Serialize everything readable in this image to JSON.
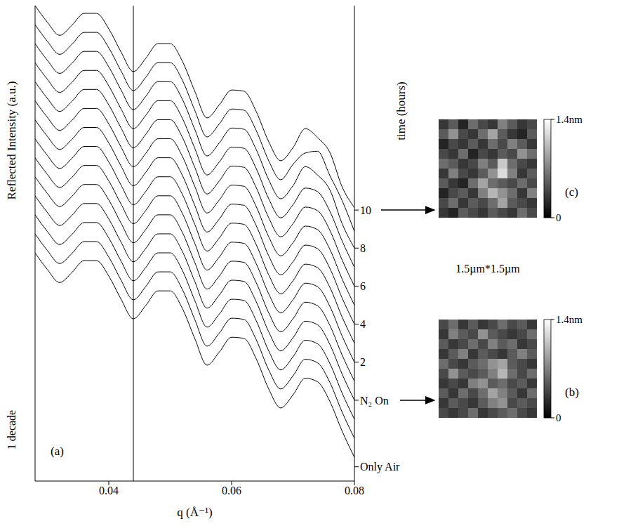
{
  "image_size_label": "1.5µm*1.5µm",
  "chart_data": [
    {
      "type": "line",
      "label": "(a)",
      "x_label": "q (Å⁻¹)",
      "y_label": "Reflected Intensity (a.u.)",
      "y2_label": "time (hours)",
      "annotations": [
        "1 decade"
      ],
      "color": "#000000",
      "x": [
        0.028,
        0.03,
        0.032,
        0.034,
        0.036,
        0.038,
        0.04,
        0.042,
        0.044,
        0.046,
        0.048,
        0.05,
        0.052,
        0.054,
        0.056,
        0.058,
        0.06,
        0.062,
        0.064,
        0.066,
        0.068,
        0.07,
        0.072,
        0.074,
        0.076,
        0.078,
        0.08
      ],
      "xlim": [
        0.028,
        0.08
      ],
      "xticks": [
        0.04,
        0.06,
        0.08
      ],
      "ylim": [
        0,
        8
      ],
      "yticks": [],
      "y2lim": [
        -4.25,
        20.75
      ],
      "y2ticks": [
        {
          "value": -3.5,
          "label": "Only Air"
        },
        {
          "value": 0,
          "label": "N₂ On"
        },
        2,
        4,
        6,
        8,
        10
      ],
      "reference_x": 0.044,
      "series": [
        {
          "values": [
            8.0,
            7.72,
            7.5,
            7.67,
            7.87,
            7.87,
            7.61,
            7.22,
            6.89,
            7.11,
            7.36,
            7.36,
            7.06,
            6.56,
            6.11,
            6.33,
            6.58,
            6.56,
            6.22,
            5.72,
            5.39,
            5.61,
            5.93,
            5.78,
            5.53,
            4.95,
            4.6
          ]
        },
        {
          "values": [
            7.68,
            7.4,
            7.18,
            7.35,
            7.55,
            7.55,
            7.29,
            6.9,
            6.57,
            6.79,
            7.04,
            7.04,
            6.74,
            6.24,
            5.79,
            6.01,
            6.26,
            6.24,
            5.9,
            5.4,
            5.07,
            5.33,
            5.52,
            5.55,
            5.14,
            4.72,
            4.2
          ]
        },
        {
          "values": [
            7.36,
            7.08,
            6.86,
            7.03,
            7.23,
            7.23,
            6.97,
            6.58,
            6.25,
            6.47,
            6.72,
            6.72,
            6.42,
            5.92,
            5.47,
            5.69,
            5.94,
            5.92,
            5.58,
            5.08,
            4.75,
            4.97,
            5.29,
            5.15,
            4.9,
            4.33,
            3.92
          ]
        },
        {
          "values": [
            7.04,
            6.76,
            6.54,
            6.71,
            6.91,
            6.91,
            6.65,
            6.26,
            5.93,
            6.15,
            6.4,
            6.4,
            6.1,
            5.6,
            5.15,
            5.37,
            5.62,
            5.6,
            5.26,
            4.76,
            4.43,
            4.65,
            4.93,
            4.87,
            4.54,
            4.04,
            3.6
          ]
        },
        {
          "values": [
            6.72,
            6.44,
            6.22,
            6.39,
            6.59,
            6.59,
            6.33,
            5.94,
            5.61,
            5.83,
            6.08,
            6.08,
            5.78,
            5.28,
            4.83,
            5.05,
            5.3,
            5.28,
            4.94,
            4.44,
            4.11,
            4.33,
            4.61,
            4.55,
            4.22,
            3.72,
            3.28
          ]
        },
        {
          "values": [
            6.4,
            6.12,
            5.9,
            6.07,
            6.27,
            6.27,
            6.01,
            5.62,
            5.29,
            5.51,
            5.76,
            5.76,
            5.46,
            4.96,
            4.51,
            4.73,
            4.98,
            4.96,
            4.62,
            4.12,
            3.79,
            4.01,
            4.29,
            4.23,
            3.9,
            3.4,
            2.96
          ]
        },
        {
          "values": [
            6.08,
            5.8,
            5.58,
            5.75,
            5.95,
            5.95,
            5.69,
            5.3,
            4.97,
            5.19,
            5.44,
            5.44,
            5.14,
            4.64,
            4.19,
            4.41,
            4.66,
            4.64,
            4.3,
            3.8,
            3.47,
            3.69,
            3.97,
            3.91,
            3.58,
            3.08,
            2.64
          ]
        },
        {
          "values": [
            5.76,
            5.48,
            5.26,
            5.43,
            5.63,
            5.63,
            5.37,
            4.98,
            4.65,
            4.87,
            5.12,
            5.12,
            4.82,
            4.32,
            3.87,
            4.09,
            4.34,
            4.32,
            3.98,
            3.48,
            3.15,
            3.37,
            3.65,
            3.59,
            3.26,
            2.76,
            2.32
          ]
        },
        {
          "values": [
            5.44,
            5.16,
            4.94,
            5.11,
            5.31,
            5.31,
            5.05,
            4.66,
            4.33,
            4.55,
            4.8,
            4.8,
            4.5,
            4.0,
            3.55,
            3.77,
            4.02,
            4.0,
            3.66,
            3.16,
            2.83,
            3.05,
            3.33,
            3.27,
            2.94,
            2.44,
            2.0
          ]
        },
        {
          "values": [
            5.12,
            4.84,
            4.62,
            4.79,
            4.99,
            4.99,
            4.73,
            4.34,
            4.01,
            4.23,
            4.48,
            4.48,
            4.18,
            3.68,
            3.23,
            3.45,
            3.7,
            3.68,
            3.34,
            2.84,
            2.51,
            2.73,
            3.01,
            2.95,
            2.62,
            2.12,
            1.68
          ]
        },
        {
          "values": [
            4.8,
            4.52,
            4.3,
            4.47,
            4.67,
            4.67,
            4.41,
            4.02,
            3.69,
            3.91,
            4.16,
            4.16,
            3.86,
            3.36,
            2.91,
            3.13,
            3.38,
            3.36,
            3.02,
            2.52,
            2.19,
            2.41,
            2.69,
            2.63,
            2.3,
            1.8,
            1.36
          ]
        },
        {
          "values": [
            4.48,
            4.2,
            3.98,
            4.15,
            4.35,
            4.35,
            4.09,
            3.7,
            3.37,
            3.59,
            3.84,
            3.84,
            3.54,
            3.04,
            2.59,
            2.81,
            3.06,
            3.04,
            2.7,
            2.2,
            1.87,
            2.09,
            2.37,
            2.31,
            1.98,
            1.48,
            1.04
          ]
        },
        {
          "values": [
            4.16,
            3.88,
            3.66,
            3.83,
            4.03,
            4.03,
            3.77,
            3.38,
            3.05,
            3.27,
            3.52,
            3.52,
            3.22,
            2.72,
            2.27,
            2.49,
            2.74,
            2.72,
            2.38,
            1.88,
            1.55,
            1.77,
            2.05,
            1.99,
            1.66,
            1.16,
            0.72
          ]
        },
        {
          "values": [
            3.84,
            3.56,
            3.34,
            3.51,
            3.71,
            3.71,
            3.45,
            3.06,
            2.73,
            2.95,
            3.2,
            3.2,
            2.9,
            2.4,
            1.95,
            2.17,
            2.42,
            2.4,
            2.06,
            1.56,
            1.23,
            1.45,
            1.73,
            1.67,
            1.34,
            0.84,
            0.4
          ]
        }
      ]
    },
    {
      "type": "heatmap",
      "label": "(c)",
      "time": 10,
      "cells": [
        [
          0.3,
          0.5,
          0.2,
          0.6,
          0.4,
          0.3,
          0.7,
          0.5,
          0.3,
          0.4
        ],
        [
          0.5,
          0.8,
          0.4,
          0.3,
          0.6,
          0.9,
          0.5,
          0.3,
          0.2,
          0.5
        ],
        [
          0.2,
          0.4,
          0.3,
          0.5,
          0.3,
          0.6,
          0.4,
          0.7,
          0.5,
          0.3
        ],
        [
          0.4,
          0.3,
          0.6,
          0.2,
          0.4,
          0.3,
          0.5,
          0.4,
          0.8,
          0.6
        ],
        [
          0.6,
          0.5,
          0.3,
          0.4,
          0.7,
          0.5,
          1.1,
          0.6,
          0.4,
          0.3
        ],
        [
          0.3,
          0.7,
          0.4,
          0.3,
          0.5,
          0.8,
          1.2,
          0.7,
          0.3,
          0.5
        ],
        [
          0.5,
          0.3,
          0.2,
          0.6,
          0.9,
          0.6,
          0.5,
          0.4,
          0.6,
          0.4
        ],
        [
          0.2,
          0.4,
          0.5,
          0.3,
          0.7,
          1.0,
          0.8,
          0.6,
          0.3,
          0.7
        ],
        [
          0.4,
          0.6,
          0.3,
          0.5,
          0.4,
          0.6,
          0.9,
          0.5,
          0.4,
          0.3
        ],
        [
          0.3,
          0.2,
          0.5,
          0.4,
          0.3,
          0.5,
          0.4,
          0.3,
          0.6,
          0.4
        ]
      ],
      "colorbar": {
        "range": [
          0,
          1.4
        ],
        "ticks": [
          0,
          {
            "value": 1.4,
            "label": "1.4nm"
          }
        ]
      }
    },
    {
      "type": "heatmap",
      "label": "(b)",
      "time": 0,
      "cells": [
        [
          0.4,
          0.6,
          0.3,
          0.5,
          0.3,
          0.4,
          0.6,
          0.4,
          0.5,
          0.3
        ],
        [
          0.3,
          0.7,
          0.5,
          0.4,
          0.8,
          0.5,
          0.4,
          0.3,
          0.4,
          0.6
        ],
        [
          0.5,
          0.3,
          0.4,
          0.6,
          0.4,
          0.7,
          0.5,
          0.6,
          0.3,
          0.4
        ],
        [
          0.3,
          0.5,
          0.7,
          0.3,
          0.5,
          0.4,
          0.3,
          0.5,
          0.7,
          0.5
        ],
        [
          0.6,
          0.4,
          0.3,
          0.5,
          0.6,
          0.8,
          0.9,
          0.5,
          0.4,
          0.3
        ],
        [
          0.4,
          0.8,
          0.5,
          0.4,
          0.5,
          0.7,
          1.0,
          0.6,
          0.4,
          0.6
        ],
        [
          0.3,
          0.4,
          0.3,
          0.7,
          0.8,
          0.5,
          0.6,
          0.4,
          0.5,
          0.3
        ],
        [
          0.5,
          0.3,
          0.6,
          0.4,
          0.6,
          0.9,
          0.7,
          0.5,
          0.3,
          0.6
        ],
        [
          0.3,
          0.5,
          0.4,
          0.3,
          0.5,
          0.7,
          0.8,
          0.4,
          0.5,
          0.4
        ],
        [
          0.4,
          0.3,
          0.4,
          0.6,
          0.3,
          0.4,
          0.5,
          0.6,
          0.4,
          0.3
        ]
      ],
      "colorbar": {
        "range": [
          0,
          1.4
        ],
        "ticks": [
          0,
          {
            "value": 1.4,
            "label": "1.4nm"
          }
        ]
      }
    }
  ]
}
